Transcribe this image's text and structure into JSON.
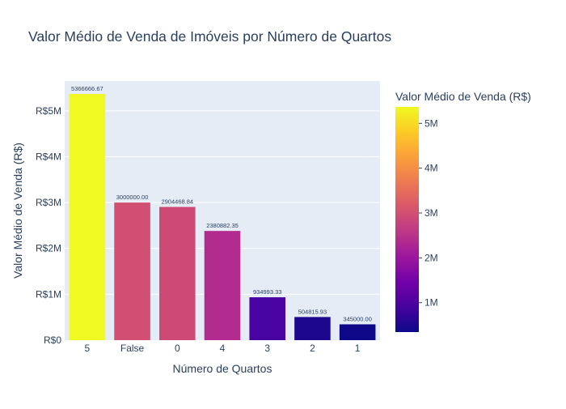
{
  "chart_data": {
    "type": "bar",
    "title": "Valor Médio de Venda de Imóveis por Número de Quartos",
    "xlabel": "Número de Quartos",
    "ylabel": "Valor Médio de Venda (R$)",
    "categories": [
      "5",
      "False",
      "0",
      "4",
      "3",
      "2",
      "1"
    ],
    "values": [
      5366666.67,
      3000000.0,
      2904468.84,
      2380882.35,
      934993.33,
      504815.93,
      345000.0
    ],
    "value_labels": [
      "5366666.67",
      "3000000.00",
      "2904468.84",
      "2380882.35",
      "934993.33",
      "504815.93",
      "345000.00"
    ],
    "ylim": [
      0,
      5650000
    ],
    "yticks": [
      {
        "value": 0,
        "label": "R$0"
      },
      {
        "value": 1000000,
        "label": "R$1M"
      },
      {
        "value": 2000000,
        "label": "R$2M"
      },
      {
        "value": 3000000,
        "label": "R$3M"
      },
      {
        "value": 4000000,
        "label": "R$4M"
      },
      {
        "value": 5000000,
        "label": "R$5M"
      }
    ],
    "grid": true,
    "colorscale": "plasma",
    "colorbar": {
      "title": "Valor Médio de Venda (R$)",
      "range": [
        345000,
        5366666.67
      ],
      "ticks": [
        {
          "value": 1000000,
          "label": "1M"
        },
        {
          "value": 2000000,
          "label": "2M"
        },
        {
          "value": 3000000,
          "label": "3M"
        },
        {
          "value": 4000000,
          "label": "4M"
        },
        {
          "value": 5000000,
          "label": "5M"
        }
      ],
      "placement": "right"
    },
    "colors": {
      "plot_bg": "#e5ecf6",
      "grid": "#ffffff",
      "text": "#2a3f5f"
    }
  }
}
